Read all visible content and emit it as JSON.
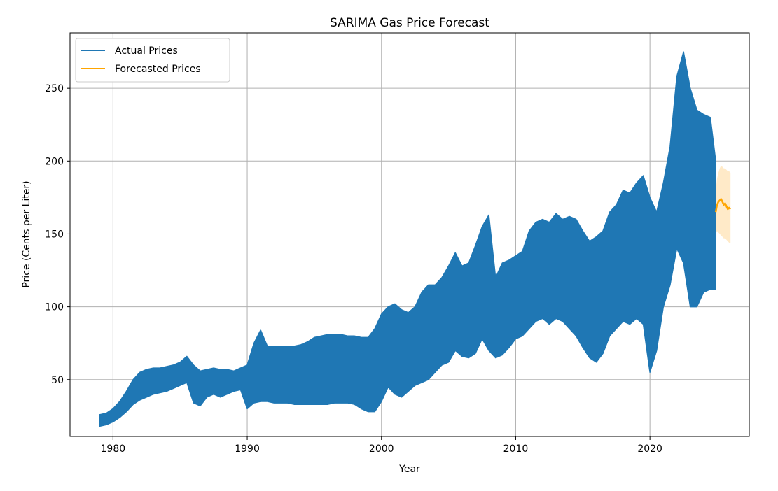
{
  "chart_data": {
    "type": "line",
    "title": "SARIMA Gas Price Forecast",
    "xlabel": "Year",
    "ylabel": "Price (Cents per Liter)",
    "xlim": [
      1976.8,
      2027.4
    ],
    "ylim": [
      11.0,
      288.0
    ],
    "xticks": [
      1980,
      1990,
      2000,
      2010,
      2020
    ],
    "yticks": [
      50,
      100,
      150,
      200,
      250
    ],
    "grid": true,
    "legend_position": "top-left",
    "colors": {
      "actual": "#1f77b4",
      "forecast": "#ffa500",
      "band": "#ffe8c2"
    },
    "series": [
      {
        "name": "Actual Prices",
        "style": "band-envelope",
        "x": [
          1979.0,
          1979.5,
          1980.0,
          1980.5,
          1981.0,
          1981.5,
          1982.0,
          1982.5,
          1983.0,
          1983.5,
          1984.0,
          1984.5,
          1985.0,
          1985.5,
          1986.0,
          1986.5,
          1987.0,
          1987.5,
          1988.0,
          1988.5,
          1989.0,
          1989.5,
          1990.0,
          1990.5,
          1991.0,
          1991.5,
          1992.0,
          1992.5,
          1993.0,
          1993.5,
          1994.0,
          1994.5,
          1995.0,
          1995.5,
          1996.0,
          1996.5,
          1997.0,
          1997.5,
          1998.0,
          1998.5,
          1999.0,
          1999.5,
          2000.0,
          2000.5,
          2001.0,
          2001.5,
          2002.0,
          2002.5,
          2003.0,
          2003.5,
          2004.0,
          2004.5,
          2005.0,
          2005.5,
          2006.0,
          2006.5,
          2007.0,
          2007.5,
          2008.0,
          2008.5,
          2009.0,
          2009.5,
          2010.0,
          2010.5,
          2011.0,
          2011.5,
          2012.0,
          2012.5,
          2013.0,
          2013.5,
          2014.0,
          2014.5,
          2015.0,
          2015.5,
          2016.0,
          2016.5,
          2017.0,
          2017.5,
          2018.0,
          2018.5,
          2019.0,
          2019.5,
          2020.0,
          2020.5,
          2021.0,
          2021.5,
          2022.0,
          2022.5,
          2023.0,
          2023.5,
          2024.0,
          2024.5,
          2024.9
        ],
        "upper": [
          26,
          27,
          30,
          35,
          42,
          50,
          55,
          57,
          58,
          58,
          59,
          60,
          62,
          66,
          60,
          56,
          57,
          58,
          57,
          57,
          56,
          58,
          60,
          75,
          84,
          73,
          73,
          73,
          73,
          73,
          74,
          76,
          79,
          80,
          81,
          81,
          81,
          80,
          80,
          79,
          79,
          85,
          95,
          100,
          102,
          98,
          96,
          100,
          110,
          115,
          115,
          120,
          128,
          137,
          128,
          130,
          142,
          155,
          163,
          120,
          130,
          132,
          135,
          138,
          152,
          158,
          160,
          158,
          164,
          160,
          162,
          160,
          152,
          145,
          148,
          152,
          165,
          170,
          180,
          178,
          185,
          190,
          175,
          165,
          185,
          210,
          258,
          275,
          250,
          235,
          232,
          230,
          200
        ],
        "lower": [
          18,
          19,
          21,
          24,
          28,
          33,
          36,
          38,
          40,
          41,
          42,
          44,
          46,
          48,
          34,
          32,
          38,
          40,
          38,
          40,
          42,
          43,
          30,
          34,
          35,
          35,
          34,
          34,
          34,
          33,
          33,
          33,
          33,
          33,
          33,
          34,
          34,
          34,
          33,
          30,
          28,
          28,
          35,
          45,
          40,
          38,
          42,
          46,
          48,
          50,
          55,
          60,
          62,
          70,
          66,
          65,
          68,
          78,
          70,
          65,
          67,
          72,
          78,
          80,
          85,
          90,
          92,
          88,
          92,
          90,
          85,
          80,
          72,
          65,
          62,
          68,
          80,
          85,
          90,
          88,
          92,
          88,
          55,
          70,
          100,
          115,
          140,
          130,
          100,
          100,
          110,
          112,
          112
        ]
      },
      {
        "name": "Forecasted Prices",
        "x": [
          2024.9,
          2025.0,
          2025.1,
          2025.2,
          2025.3,
          2025.4,
          2025.5,
          2025.6,
          2025.7,
          2025.8,
          2025.9,
          2026.0
        ],
        "y": [
          165,
          170,
          172,
          173,
          174,
          172,
          170,
          171,
          169,
          167,
          168,
          167
        ],
        "upper": [
          180,
          188,
          192,
          195,
          197,
          196,
          195,
          195,
          194,
          193,
          193,
          192
        ],
        "lower": [
          150,
          152,
          151,
          150,
          149,
          148,
          147,
          147,
          146,
          145,
          144,
          144
        ]
      }
    ]
  }
}
